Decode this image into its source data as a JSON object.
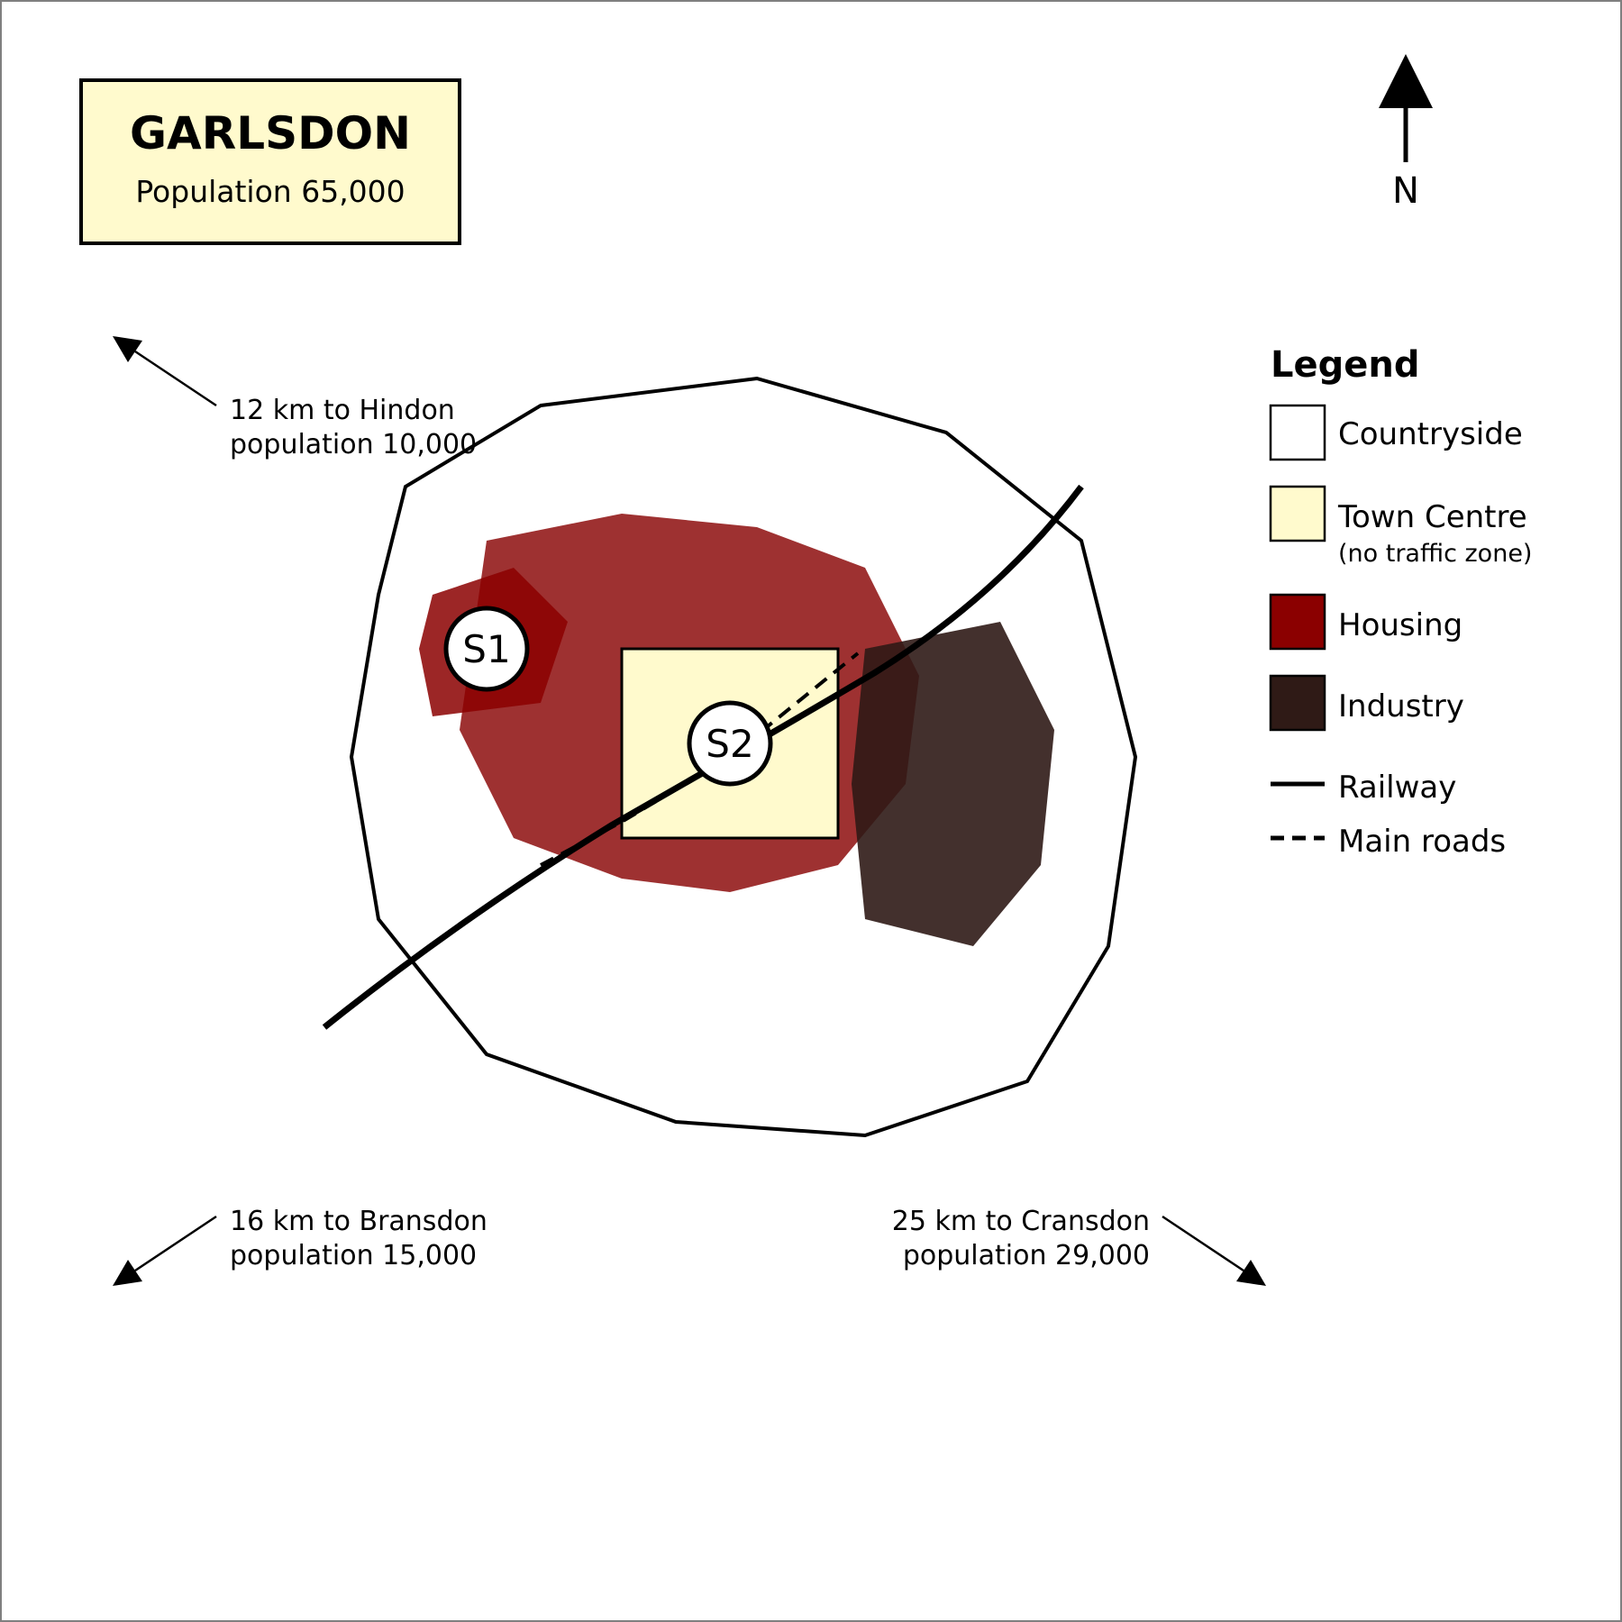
{
  "title": {
    "name": "GARLSDON",
    "population": "Population 65,000",
    "background": "#fffacd"
  },
  "compass": {
    "label": "N"
  },
  "destinations": [
    {
      "line1": "12 km to Hindon",
      "line2": "population 10,000",
      "direction": "north-west"
    },
    {
      "line1": "16 km to Bransdon",
      "line2": "population 15,000",
      "direction": "south-west"
    },
    {
      "line1": "25 km to Cransdon",
      "line2": "population 29,000",
      "direction": "south-east"
    }
  ],
  "sites": [
    {
      "label": "S1"
    },
    {
      "label": "S2"
    }
  ],
  "legend": {
    "title": "Legend",
    "items": [
      {
        "label": "Countryside",
        "color": "#ffffff",
        "kind": "area"
      },
      {
        "label": "Town Centre",
        "sublabel": "(no traffic zone)",
        "color": "#fffacd",
        "kind": "area"
      },
      {
        "label": "Housing",
        "color": "#8b0000",
        "kind": "area"
      },
      {
        "label": "Industry",
        "color": "#2f1a16",
        "kind": "area"
      },
      {
        "label": "Railway",
        "kind": "solid-line"
      },
      {
        "label": "Main roads",
        "kind": "dashed-line"
      }
    ]
  },
  "colors": {
    "housing_fill": "#9e3131",
    "housing_dark": "#8b0000",
    "industry_fill": "#41302a",
    "town_centre": "#fffacd"
  }
}
